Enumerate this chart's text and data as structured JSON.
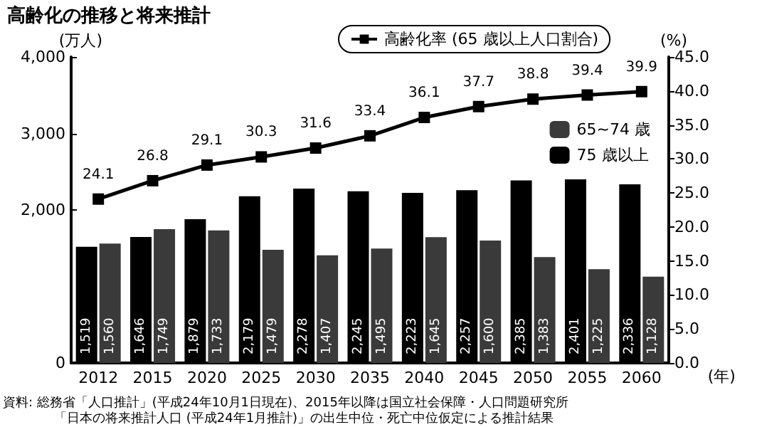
{
  "chart_data": {
    "type": "bar",
    "title": "高齢化の推移と将来推計",
    "xlabel": "(年)",
    "ylabel": "(万人)",
    "y2label": "(%)",
    "categories": [
      "2012",
      "2015",
      "2020",
      "2025",
      "2030",
      "2035",
      "2040",
      "2045",
      "2050",
      "2055",
      "2060"
    ],
    "series": [
      {
        "name": "75 歳以上",
        "color": "#000000",
        "values": [
          1519,
          1646,
          1879,
          2179,
          2278,
          2245,
          2223,
          2257,
          2385,
          2401,
          2336
        ],
        "value_labels": [
          "1,519",
          "1,646",
          "1,879",
          "2,179",
          "2,278",
          "2,245",
          "2,223",
          "2,257",
          "2,385",
          "2,401",
          "2,336"
        ]
      },
      {
        "name": "65~74 歳",
        "color": "#3a3a3a",
        "values": [
          1560,
          1749,
          1733,
          1479,
          1407,
          1495,
          1645,
          1600,
          1383,
          1225,
          1128
        ],
        "value_labels": [
          "1,560",
          "1,749",
          "1,733",
          "1,479",
          "1,407",
          "1,495",
          "1,645",
          "1,600",
          "1,383",
          "1,225",
          "1,128"
        ]
      },
      {
        "name": "高齢化率 (65 歳以上人口割合)",
        "type": "line",
        "axis": "y2",
        "color": "#000000",
        "values": [
          24.1,
          26.8,
          29.1,
          30.3,
          31.6,
          33.4,
          36.1,
          37.7,
          38.8,
          39.4,
          39.9
        ],
        "value_labels": [
          "24.1",
          "26.8",
          "29.1",
          "30.3",
          "31.6",
          "33.4",
          "36.1",
          "37.7",
          "38.8",
          "39.4",
          "39.9"
        ]
      }
    ],
    "ylim": [
      0,
      4000
    ],
    "yticks": [
      {
        "value": 0,
        "label": "0"
      },
      {
        "value": 2000,
        "label": "2,000"
      },
      {
        "value": 3000,
        "label": "3,000"
      },
      {
        "value": 4000,
        "label": "4,000"
      }
    ],
    "y2lim": [
      0,
      45
    ],
    "y2ticks": [
      {
        "value": 0,
        "label": "0.0"
      },
      {
        "value": 5,
        "label": "5.0"
      },
      {
        "value": 10,
        "label": "10.0"
      },
      {
        "value": 15,
        "label": "15.0"
      },
      {
        "value": 20,
        "label": "20.0"
      },
      {
        "value": 25,
        "label": "25.0"
      },
      {
        "value": 30,
        "label": "30.0"
      },
      {
        "value": 35,
        "label": "35.0"
      },
      {
        "value": 40,
        "label": "40.0"
      },
      {
        "value": 45,
        "label": "45.0"
      }
    ],
    "grid": false,
    "legend": "right",
    "marker": "square",
    "line_style": "solid",
    "annotations": [
      "資料: 総務省「人口推計」(平成24年10月1日現在)、2015年以降は国立社会保障・人口問題研究所",
      "「日本の将来推計人口 (平成24年1月推計)」の出生中位・死亡中位仮定による推計結果"
    ]
  }
}
